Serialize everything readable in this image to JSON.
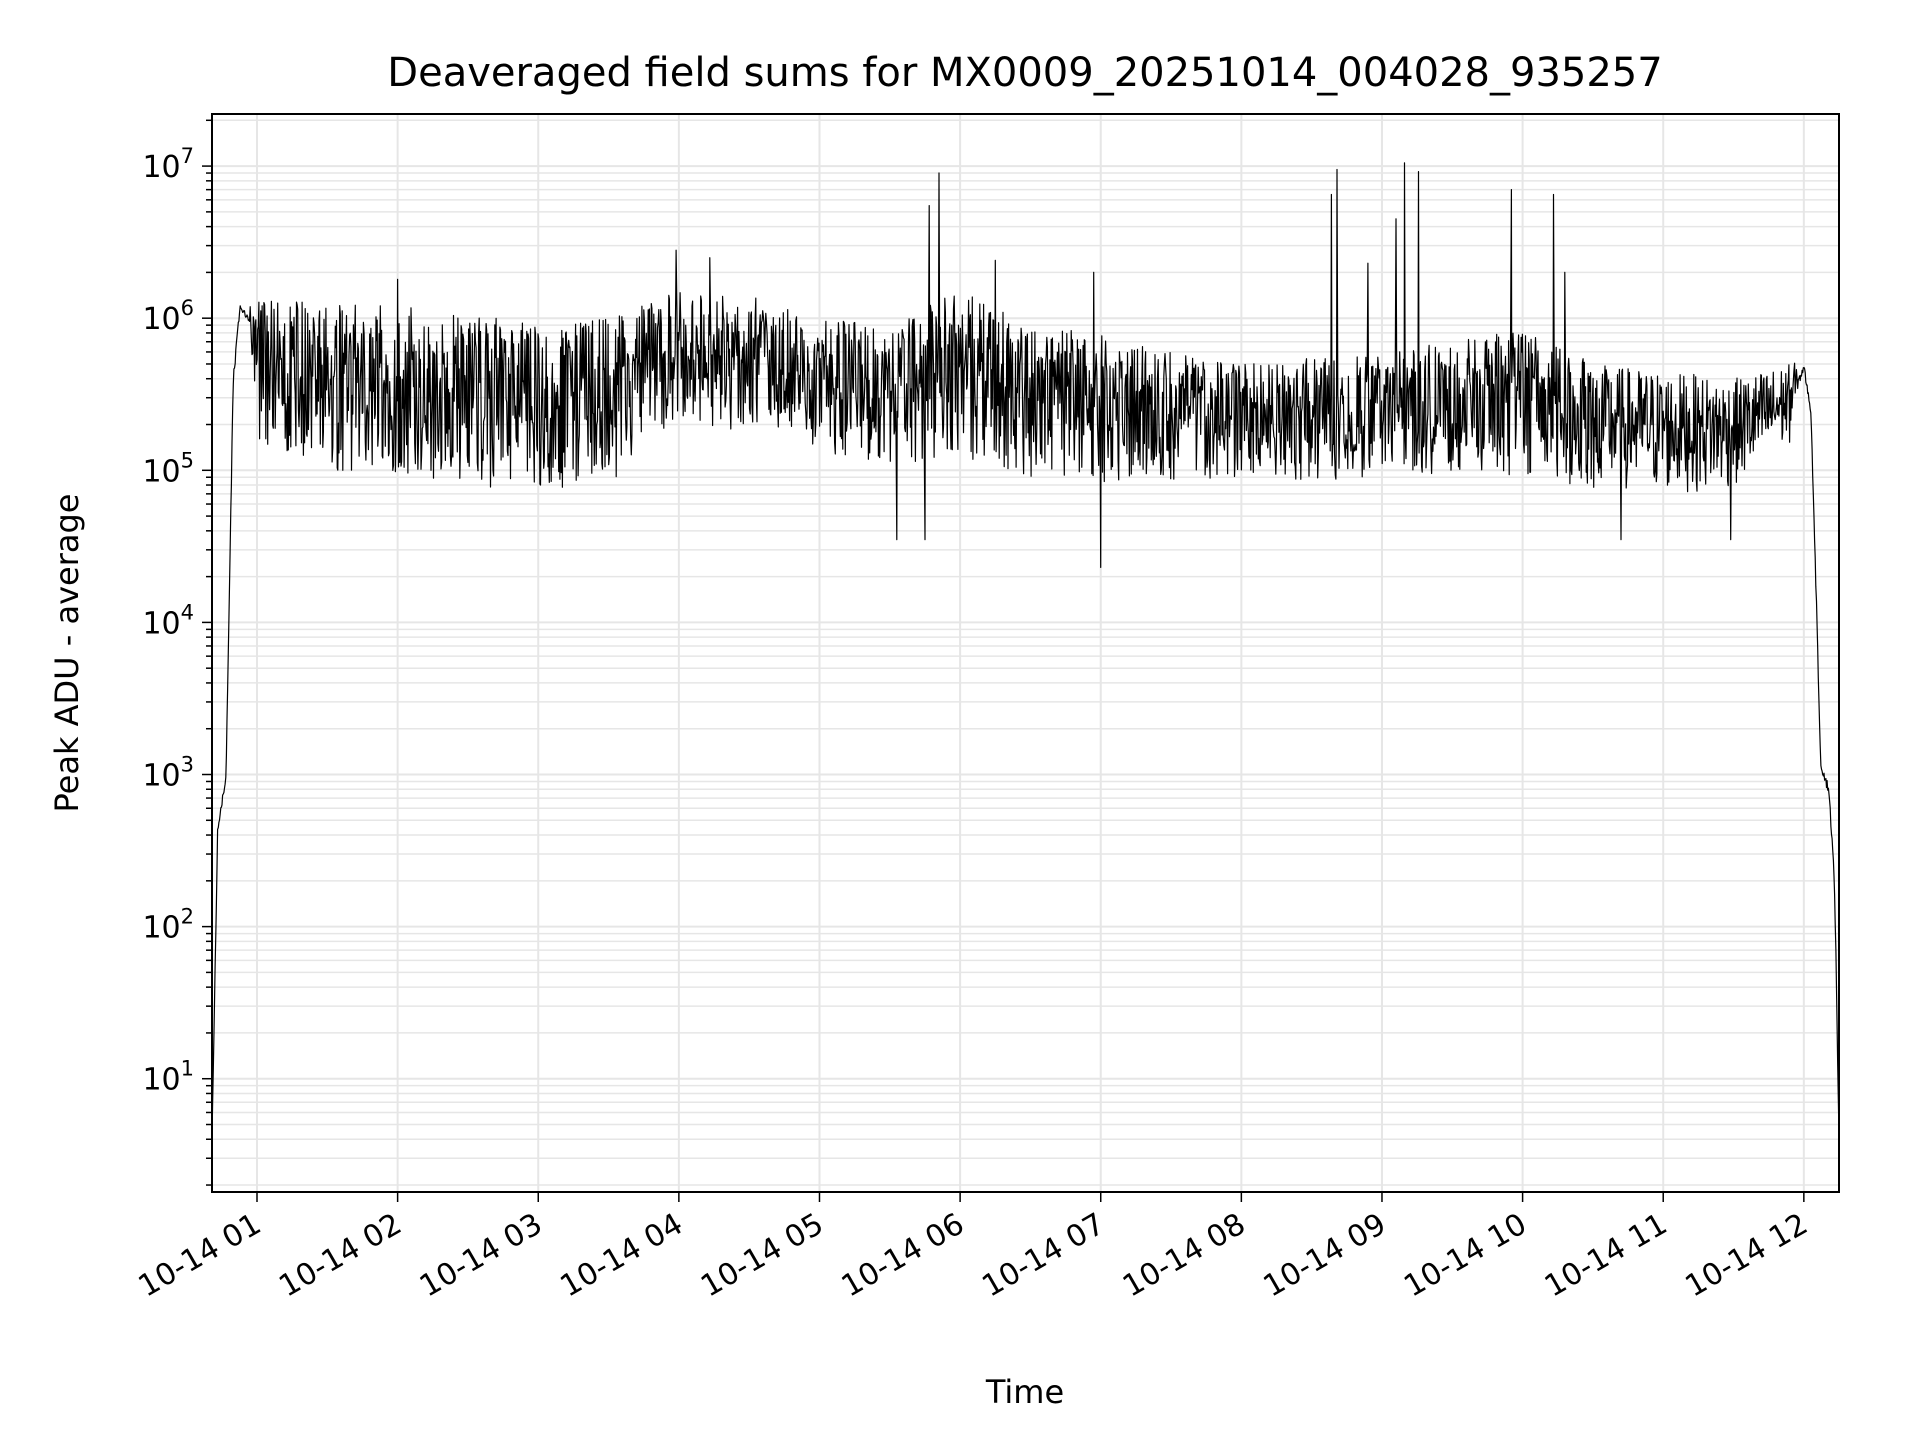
{
  "chart_data": {
    "type": "line",
    "title": "Deaveraged field sums for MX0009_20251014_004028_935257",
    "xlabel": "Time",
    "ylabel": "Peak ADU - average",
    "yscale": "log",
    "ylim": [
      1.8,
      22000000
    ],
    "xlim_hours": [
      0.68,
      12.25
    ],
    "grid": true,
    "line_color": "#000000",
    "grid_color": "#e6e6e6",
    "x_ticks": [
      {
        "hour": 1,
        "label": "10-14 01"
      },
      {
        "hour": 2,
        "label": "10-14 02"
      },
      {
        "hour": 3,
        "label": "10-14 03"
      },
      {
        "hour": 4,
        "label": "10-14 04"
      },
      {
        "hour": 5,
        "label": "10-14 05"
      },
      {
        "hour": 6,
        "label": "10-14 06"
      },
      {
        "hour": 7,
        "label": "10-14 07"
      },
      {
        "hour": 8,
        "label": "10-14 08"
      },
      {
        "hour": 9,
        "label": "10-14 09"
      },
      {
        "hour": 10,
        "label": "10-14 10"
      },
      {
        "hour": 11,
        "label": "10-14 11"
      },
      {
        "hour": 12,
        "label": "10-14 12"
      }
    ],
    "y_ticks": [
      {
        "value": 10,
        "base": "10",
        "exp": "1"
      },
      {
        "value": 100,
        "base": "10",
        "exp": "2"
      },
      {
        "value": 1000,
        "base": "10",
        "exp": "3"
      },
      {
        "value": 10000,
        "base": "10",
        "exp": "4"
      },
      {
        "value": 100000,
        "base": "10",
        "exp": "5"
      },
      {
        "value": 1000000,
        "base": "10",
        "exp": "6"
      },
      {
        "value": 10000000,
        "base": "10",
        "exp": "7"
      }
    ],
    "envelope": [
      {
        "hour": 0.68,
        "low": 3.5,
        "high": 4.5
      },
      {
        "hour": 0.72,
        "low": 300,
        "high": 600
      },
      {
        "hour": 0.78,
        "low": 800,
        "high": 1200
      },
      {
        "hour": 0.83,
        "low": 200000,
        "high": 700000
      },
      {
        "hour": 0.88,
        "low": 1000000,
        "high": 1500000
      },
      {
        "hour": 0.95,
        "low": 700000,
        "high": 1200000
      },
      {
        "hour": 1.0,
        "low": 150000,
        "high": 1300000
      },
      {
        "hour": 1.5,
        "low": 100000,
        "high": 1300000
      },
      {
        "hour": 2.0,
        "low": 90000,
        "high": 1200000
      },
      {
        "hour": 2.5,
        "low": 80000,
        "high": 1100000
      },
      {
        "hour": 3.0,
        "low": 65000,
        "high": 900000
      },
      {
        "hour": 3.5,
        "low": 80000,
        "high": 1000000
      },
      {
        "hour": 4.0,
        "low": 200000,
        "high": 1500000
      },
      {
        "hour": 4.5,
        "low": 180000,
        "high": 1400000
      },
      {
        "hour": 5.0,
        "low": 130000,
        "high": 1000000
      },
      {
        "hour": 5.5,
        "low": 110000,
        "high": 900000
      },
      {
        "hour": 6.0,
        "low": 120000,
        "high": 1600000
      },
      {
        "hour": 6.5,
        "low": 90000,
        "high": 900000
      },
      {
        "hour": 7.0,
        "low": 80000,
        "high": 800000
      },
      {
        "hour": 7.5,
        "low": 85000,
        "high": 600000
      },
      {
        "hour": 8.0,
        "low": 90000,
        "high": 500000
      },
      {
        "hour": 8.5,
        "low": 85000,
        "high": 550000
      },
      {
        "hour": 9.0,
        "low": 90000,
        "high": 600000
      },
      {
        "hour": 9.5,
        "low": 95000,
        "high": 700000
      },
      {
        "hour": 10.0,
        "low": 85000,
        "high": 900000
      },
      {
        "hour": 10.5,
        "low": 75000,
        "high": 500000
      },
      {
        "hour": 11.0,
        "low": 70000,
        "high": 450000
      },
      {
        "hour": 11.5,
        "low": 75000,
        "high": 400000
      },
      {
        "hour": 11.9,
        "low": 150000,
        "high": 500000
      },
      {
        "hour": 12.0,
        "low": 350000,
        "high": 650000
      },
      {
        "hour": 12.05,
        "low": 200000,
        "high": 300000
      },
      {
        "hour": 12.08,
        "low": 20000,
        "high": 40000
      },
      {
        "hour": 12.12,
        "low": 900,
        "high": 1500
      },
      {
        "hour": 12.18,
        "low": 500,
        "high": 1200
      },
      {
        "hour": 12.22,
        "low": 100,
        "high": 300
      },
      {
        "hour": 12.25,
        "low": 3.5,
        "high": 4.5
      }
    ],
    "spikes": [
      {
        "hour": 5.85,
        "value": 9000000
      },
      {
        "hour": 5.78,
        "value": 5500000
      },
      {
        "hour": 8.68,
        "value": 9500000
      },
      {
        "hour": 8.64,
        "value": 6500000
      },
      {
        "hour": 9.16,
        "value": 10500000
      },
      {
        "hour": 9.26,
        "value": 9200000
      },
      {
        "hour": 9.1,
        "value": 4500000
      },
      {
        "hour": 9.92,
        "value": 7000000
      },
      {
        "hour": 10.22,
        "value": 6500000
      },
      {
        "hour": 10.3,
        "value": 2000000
      },
      {
        "hour": 3.98,
        "value": 2800000
      },
      {
        "hour": 6.25,
        "value": 2400000
      },
      {
        "hour": 6.95,
        "value": 2000000
      },
      {
        "hour": 7.0,
        "value": 23000
      },
      {
        "hour": 8.9,
        "value": 2300000
      },
      {
        "hour": 2.0,
        "value": 1800000
      },
      {
        "hour": 4.22,
        "value": 2500000
      },
      {
        "hour": 5.55,
        "value": 35000
      },
      {
        "hour": 5.75,
        "value": 35000
      },
      {
        "hour": 10.7,
        "value": 35000
      },
      {
        "hour": 11.48,
        "value": 35000
      }
    ]
  }
}
